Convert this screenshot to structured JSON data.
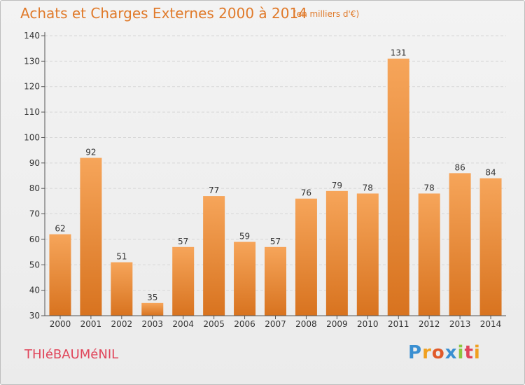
{
  "header": {
    "title": "Achats et Charges Externes 2000 à 2014",
    "subtitle": "(en milliers d'€)"
  },
  "footer": {
    "commune": "THIéBAUMéNIL",
    "logo_text": "Proxiti",
    "logo_letters": [
      {
        "ch": "P",
        "color": "#3a8fd1"
      },
      {
        "ch": "r",
        "color": "#f0a020"
      },
      {
        "ch": "o",
        "color": "#e05a2a"
      },
      {
        "ch": "x",
        "color": "#3a8fd1"
      },
      {
        "ch": "i",
        "color": "#8cc63f"
      },
      {
        "ch": "t",
        "color": "#e0455a"
      },
      {
        "ch": "i",
        "color": "#f0a020"
      }
    ]
  },
  "chart_data": {
    "type": "bar",
    "title": "Achats et Charges Externes 2000 à 2014",
    "subtitle": "(en milliers d'€)",
    "categories": [
      "2000",
      "2001",
      "2002",
      "2003",
      "2004",
      "2005",
      "2006",
      "2007",
      "2008",
      "2009",
      "2010",
      "2011",
      "2012",
      "2013",
      "2014"
    ],
    "values": [
      62,
      92,
      51,
      35,
      57,
      77,
      59,
      57,
      76,
      79,
      78,
      131,
      78,
      86,
      84
    ],
    "ylim": [
      30,
      140
    ],
    "yticks": [
      30,
      40,
      50,
      60,
      70,
      80,
      90,
      100,
      110,
      120,
      130,
      140
    ],
    "grid": true,
    "bar_color_top": "#f6a55a",
    "bar_color_bottom": "#d8731f",
    "grid_color": "#d6d6d6",
    "axis_color": "#555555"
  }
}
